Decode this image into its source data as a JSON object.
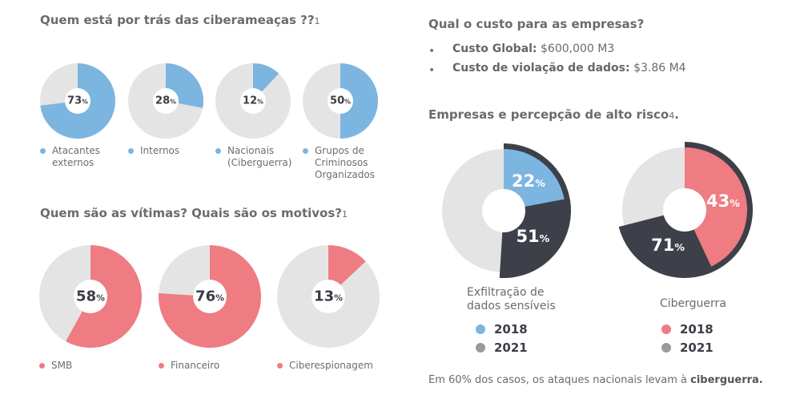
{
  "headings": {
    "threats": "Quem está por trás das ciberameaças ??",
    "threats_ref": "1",
    "victims": "Quem são as vítimas? Quais são os motivos?",
    "victims_ref": "1",
    "cost": "Qual o custo para as empresas?",
    "risk": "Empresas e percepção de alto risco",
    "risk_ref": "4",
    "risk_tail": "."
  },
  "cost_items": [
    {
      "label": "Custo Global:",
      "value": "$600,000 M3"
    },
    {
      "label": "Custo de violação de dados:",
      "value": "$3.86 M4"
    }
  ],
  "bullet_char": "•",
  "pct_sign": "%",
  "footnote": {
    "text": "Em 60% dos casos, os ataques nacionais levam à ",
    "bold": "ciberguerra."
  },
  "colors": {
    "blue": "#7cb5e0",
    "pink": "#ee7c82",
    "dark": "#3d4049",
    "gray": "#e4e4e4",
    "legend_gray": "#9a9a9a"
  },
  "chart_data": [
    {
      "type": "pie",
      "title": "Quem está por trás das ciberameaças ??",
      "slices": [
        {
          "label": "Atacantes externos",
          "value": 73
        },
        {
          "label": "Internos",
          "value": 28
        },
        {
          "label": "Nacionais (Ciberguerra)",
          "value": 12
        },
        {
          "label": "Grupos de Criminosos Organizados",
          "value": 50
        }
      ],
      "unit": "%",
      "legend_lines": [
        [
          "Atacantes",
          "externos"
        ],
        [
          "Internos"
        ],
        [
          "Nacionais",
          "(Ciberguerra)"
        ],
        [
          "Grupos de",
          "Criminosos",
          "Organizados"
        ]
      ]
    },
    {
      "type": "pie",
      "title": "Quem são as vítimas? Quais são os motivos?",
      "slices": [
        {
          "label": "SMB",
          "value": 58
        },
        {
          "label": "Financeiro",
          "value": 76
        },
        {
          "label": "Ciberespionagem",
          "value": 13
        }
      ],
      "unit": "%"
    },
    {
      "type": "pie",
      "title": "Empresas e percepção de alto risco",
      "categories": [
        "Exfiltração de dados sensíveis",
        "Ciberguerra"
      ],
      "caption_lines": [
        [
          "Exfiltração de",
          "dados sensíveis"
        ],
        [
          "Ciberguerra"
        ]
      ],
      "series": [
        {
          "name": "2018",
          "values": [
            22,
            43
          ]
        },
        {
          "name": "2021",
          "values": [
            51,
            71
          ]
        }
      ],
      "unit": "%"
    }
  ]
}
